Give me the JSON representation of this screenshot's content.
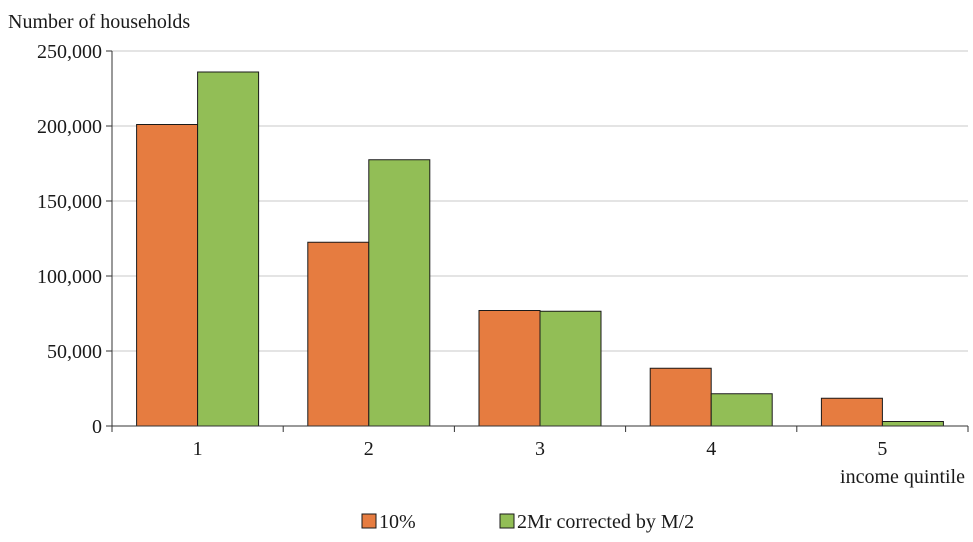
{
  "chart_data": {
    "type": "bar",
    "ylabel": "Number of households",
    "xlabel": "income quintile",
    "categories": [
      "1",
      "2",
      "3",
      "4",
      "5"
    ],
    "ylim": [
      0,
      250000
    ],
    "yticks": [
      0,
      50000,
      100000,
      150000,
      200000,
      250000
    ],
    "ytick_labels": [
      "0",
      "50,000",
      "100,000",
      "150,000",
      "200,000",
      "250,000"
    ],
    "grid": "horizontal",
    "legend_position": "bottom",
    "series": [
      {
        "name": "10%",
        "color": "#E67C40",
        "values": [
          201000,
          122500,
          77000,
          38500,
          18500
        ]
      },
      {
        "name": "2Mr corrected by M/2",
        "color": "#92BE56",
        "values": [
          236000,
          177500,
          76500,
          21500,
          3000
        ]
      }
    ]
  }
}
